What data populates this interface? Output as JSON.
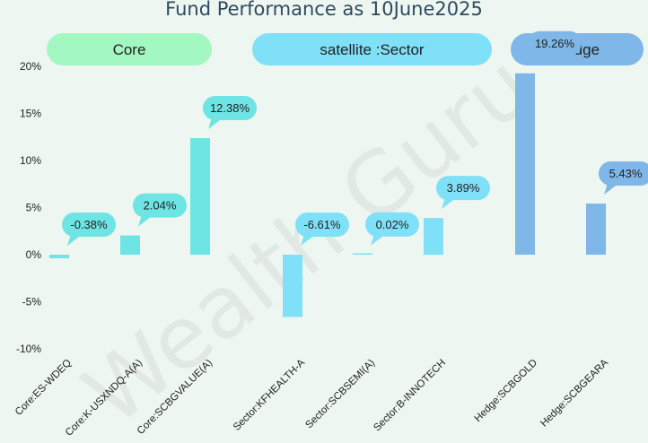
{
  "chart_data": {
    "type": "bar",
    "title": "Fund Performance as 10June2025",
    "watermark": "Wealth Guru",
    "ylim": [
      -10,
      20
    ],
    "yticks": [
      -10,
      -5,
      0,
      5,
      10,
      15,
      20
    ],
    "ytick_labels": [
      "-10%",
      "-5%",
      "0%",
      "5%",
      "10%",
      "15%",
      "20%"
    ],
    "grid": false,
    "categories": [
      "Core:ES-WDEQ",
      "Core:K-USXNDQ-A(A)",
      "Core:SCBGVALUE(A)",
      "Sector:KFHEALTH-A",
      "Sector:SCBSEMI(A)",
      "Sector:B-INNOTECH",
      "Hedge:SCBGOLD",
      "Hedge:SCBGEARA"
    ],
    "values": [
      -0.38,
      2.04,
      12.38,
      -6.61,
      0.02,
      3.89,
      19.26,
      5.43
    ],
    "value_labels": [
      "-0.38%",
      "2.04%",
      "12.38%",
      "-6.61%",
      "0.02%",
      "3.89%",
      "19.26%",
      "5.43%"
    ],
    "groups": [
      {
        "label": "Core",
        "color": "#a3f7c0",
        "bar_color": "#6ee4e4",
        "bubble_color": "#6ee4e4",
        "members": [
          0,
          1,
          2
        ]
      },
      {
        "label": "satellite :Sector",
        "color": "#7fe0f8",
        "bar_color": "#7fe0f8",
        "bubble_color": "#7fe0f8",
        "members": [
          3,
          4,
          5
        ]
      },
      {
        "label": "Hedge",
        "color": "#7fb7e9",
        "bar_color": "#7fb7e9",
        "bubble_color": "#7fb7e9",
        "members": [
          6,
          7
        ]
      }
    ]
  }
}
